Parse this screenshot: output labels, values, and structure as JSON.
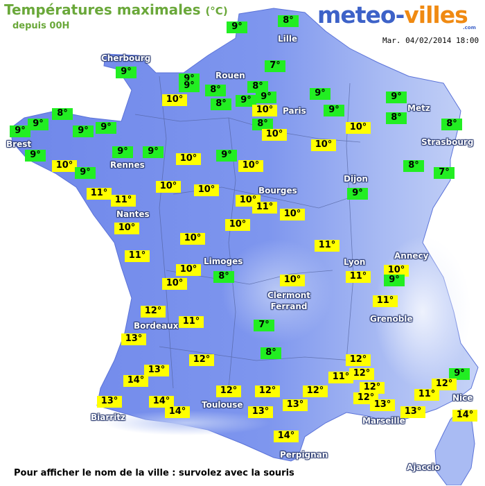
{
  "header": {
    "title": "Températures maximales",
    "title_unit": "(°C)",
    "subtitle": "depuis 00H",
    "datetime": "Mar. 04/02/2014 18:00"
  },
  "logo": {
    "part1": "meteo-",
    "part2": "villes",
    "suffix": ".com"
  },
  "colors": {
    "warm": "#ffff00",
    "cool": "#22ee22",
    "land": "#7189ec",
    "sea": "#ffffff",
    "title_green": "#6aa83a"
  },
  "cities": [
    "Lille",
    "Cherbourg",
    "Rouen",
    "Paris",
    "Metz",
    "Strasbourg",
    "Brest",
    "Rennes",
    "Dijon",
    "Nantes",
    "Bourges",
    "Annecy",
    "Lyon",
    "Limoges",
    "Clermont Ferrand",
    "Grenoble",
    "Bordeaux",
    "Nice",
    "Toulouse",
    "Biarritz",
    "Marseille",
    "Perpignan",
    "Ajaccio"
  ],
  "readings": [
    {
      "label": "8°",
      "type": "cool"
    },
    {
      "label": "9°",
      "type": "cool"
    },
    {
      "label": "9°",
      "type": "cool"
    },
    {
      "label": "9°",
      "type": "cool"
    },
    {
      "label": "9°",
      "type": "cool"
    },
    {
      "label": "7°",
      "type": "cool"
    },
    {
      "label": "8°",
      "type": "cool"
    },
    {
      "label": "8°",
      "type": "cool"
    },
    {
      "label": "8°",
      "type": "cool"
    },
    {
      "label": "9°",
      "type": "cool"
    },
    {
      "label": "9°",
      "type": "cool"
    },
    {
      "label": "9°",
      "type": "cool"
    },
    {
      "label": "10°",
      "type": "warm"
    },
    {
      "label": "10°",
      "type": "warm"
    },
    {
      "label": "8°",
      "type": "cool"
    },
    {
      "label": "9°",
      "type": "cool"
    },
    {
      "label": "9°",
      "type": "cool"
    },
    {
      "label": "8°",
      "type": "cool"
    },
    {
      "label": "8°",
      "type": "cool"
    },
    {
      "label": "8°",
      "type": "cool"
    },
    {
      "label": "9°",
      "type": "cool"
    },
    {
      "label": "9°",
      "type": "cool"
    },
    {
      "label": "9°",
      "type": "cool"
    },
    {
      "label": "9°",
      "type": "cool"
    },
    {
      "label": "9°",
      "type": "cool"
    },
    {
      "label": "10°",
      "type": "warm"
    },
    {
      "label": "10°",
      "type": "warm"
    },
    {
      "label": "10°",
      "type": "warm"
    },
    {
      "label": "9°",
      "type": "cool"
    },
    {
      "label": "9°",
      "type": "cool"
    },
    {
      "label": "9°",
      "type": "cool"
    },
    {
      "label": "10°",
      "type": "warm"
    },
    {
      "label": "10°",
      "type": "warm"
    },
    {
      "label": "8°",
      "type": "cool"
    },
    {
      "label": "7°",
      "type": "cool"
    },
    {
      "label": "10°",
      "type": "warm"
    },
    {
      "label": "9°",
      "type": "cool"
    },
    {
      "label": "11°",
      "type": "warm"
    },
    {
      "label": "11°",
      "type": "warm"
    },
    {
      "label": "10°",
      "type": "warm"
    },
    {
      "label": "10°",
      "type": "warm"
    },
    {
      "label": "10°",
      "type": "warm"
    },
    {
      "label": "11°",
      "type": "warm"
    },
    {
      "label": "10°",
      "type": "warm"
    },
    {
      "label": "9°",
      "type": "cool"
    },
    {
      "label": "10°",
      "type": "warm"
    },
    {
      "label": "10°",
      "type": "warm"
    },
    {
      "label": "10°",
      "type": "warm"
    },
    {
      "label": "11°",
      "type": "warm"
    },
    {
      "label": "11°",
      "type": "warm"
    },
    {
      "label": "10°",
      "type": "warm"
    },
    {
      "label": "10°",
      "type": "warm"
    },
    {
      "label": "8°",
      "type": "cool"
    },
    {
      "label": "11°",
      "type": "warm"
    },
    {
      "label": "9°",
      "type": "cool"
    },
    {
      "label": "10°",
      "type": "warm"
    },
    {
      "label": "10°",
      "type": "warm"
    },
    {
      "label": "11°",
      "type": "warm"
    },
    {
      "label": "12°",
      "type": "warm"
    },
    {
      "label": "11°",
      "type": "warm"
    },
    {
      "label": "7°",
      "type": "cool"
    },
    {
      "label": "13°",
      "type": "warm"
    },
    {
      "label": "12°",
      "type": "warm"
    },
    {
      "label": "8°",
      "type": "cool"
    },
    {
      "label": "12°",
      "type": "warm"
    },
    {
      "label": "13°",
      "type": "warm"
    },
    {
      "label": "11°",
      "type": "warm"
    },
    {
      "label": "9°",
      "type": "cool"
    },
    {
      "label": "14°",
      "type": "warm"
    },
    {
      "label": "12°",
      "type": "warm"
    },
    {
      "label": "12°",
      "type": "warm"
    },
    {
      "label": "12°",
      "type": "warm"
    },
    {
      "label": "12°",
      "type": "warm"
    },
    {
      "label": "11°",
      "type": "warm"
    },
    {
      "label": "13°",
      "type": "warm"
    },
    {
      "label": "14°",
      "type": "warm"
    },
    {
      "label": "12°",
      "type": "warm"
    },
    {
      "label": "13°",
      "type": "warm"
    },
    {
      "label": "12°",
      "type": "warm"
    },
    {
      "label": "13°",
      "type": "warm"
    },
    {
      "label": "12°",
      "type": "warm"
    },
    {
      "label": "13°",
      "type": "warm"
    },
    {
      "label": "14°",
      "type": "warm"
    },
    {
      "label": "13°",
      "type": "warm"
    },
    {
      "label": "14°",
      "type": "warm"
    },
    {
      "label": "14°",
      "type": "warm"
    }
  ],
  "footer": "Pour afficher le nom de la ville : survolez avec la souris"
}
